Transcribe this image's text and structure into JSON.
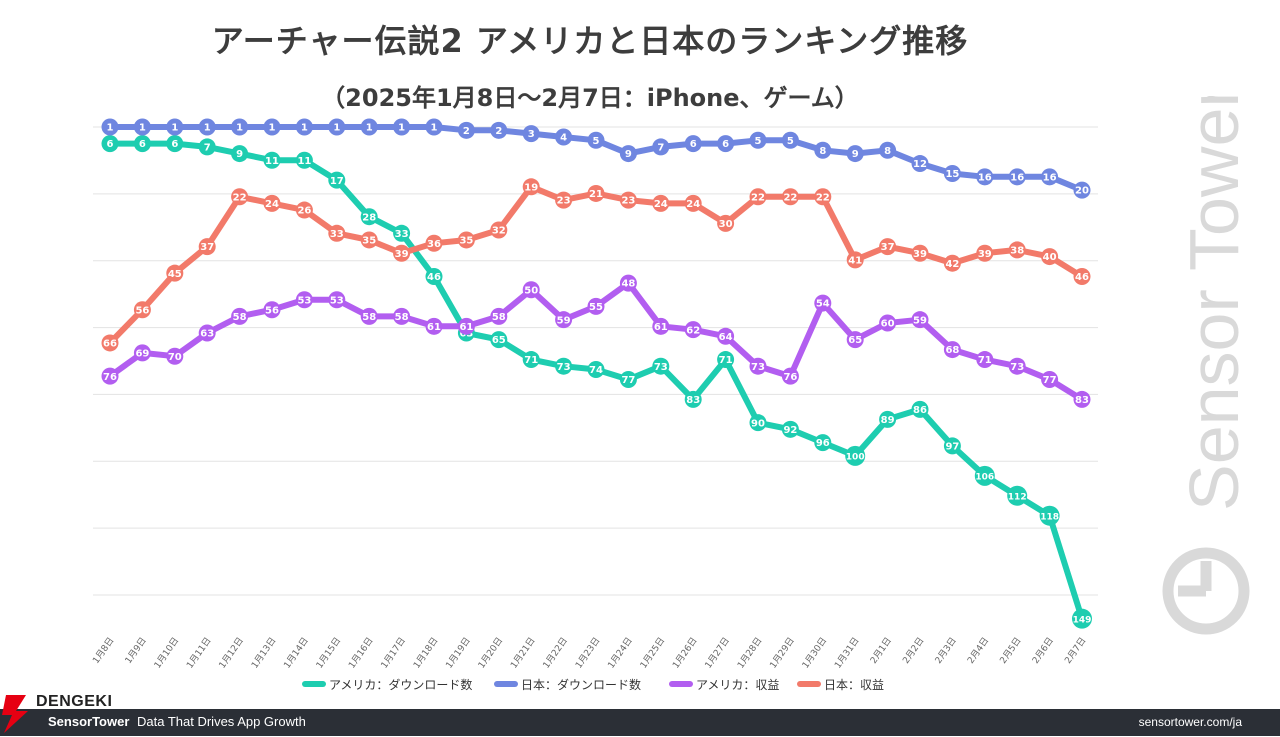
{
  "header": {
    "title": "アーチャー伝説2 アメリカと日本のランキング推移",
    "subtitle": "（2025年1月8日〜2月7日：iPhone、ゲーム）"
  },
  "watermark": {
    "text": "Sensor Tower",
    "icon": "sensor-tower-logo-icon"
  },
  "footer": {
    "brand": "SensorTower",
    "tagline": "Data That Drives App Growth",
    "url": "sensortower.com/ja",
    "background": "#2b2f36"
  },
  "overlay_logo": {
    "text": "DENGEKI",
    "icon": "dengeki-lightning-icon",
    "color": "#e60012"
  },
  "chart_data": {
    "type": "line",
    "title": "アーチャー伝説2 アメリカと日本のランキング推移",
    "subtitle": "（2025年1月8日〜2月7日：iPhone、ゲーム）",
    "y_reversed": true,
    "ylim": [
      1,
      150
    ],
    "grid": true,
    "legend_position": "bottom",
    "categories": [
      "1月8日",
      "1月9日",
      "1月10日",
      "1月11日",
      "1月12日",
      "1月13日",
      "1月14日",
      "1月15日",
      "1月16日",
      "1月17日",
      "1月18日",
      "1月19日",
      "1月20日",
      "1月21日",
      "1月22日",
      "1月23日",
      "1月24日",
      "1月25日",
      "1月26日",
      "1月27日",
      "1月28日",
      "1月29日",
      "1月30日",
      "1月31日",
      "2月1日",
      "2月2日",
      "2月3日",
      "2月4日",
      "2月5日",
      "2月6日",
      "2月7日"
    ],
    "series": [
      {
        "name": "アメリカ：ダウンロード数",
        "color": "#1ecdb0",
        "values": [
          6,
          6,
          6,
          7,
          9,
          11,
          11,
          17,
          28,
          33,
          46,
          63,
          65,
          71,
          73,
          74,
          77,
          73,
          83,
          71,
          90,
          92,
          96,
          100,
          89,
          86,
          97,
          106,
          112,
          118,
          149
        ]
      },
      {
        "name": "日本：ダウンロード数",
        "color": "#6f86e0",
        "values": [
          1,
          1,
          1,
          1,
          1,
          1,
          1,
          1,
          1,
          1,
          1,
          2,
          2,
          3,
          4,
          5,
          9,
          7,
          6,
          6,
          5,
          5,
          8,
          9,
          8,
          12,
          15,
          16,
          16,
          16,
          20
        ]
      },
      {
        "name": "アメリカ：収益",
        "color": "#b25ef0",
        "values": [
          76,
          69,
          70,
          63,
          58,
          56,
          53,
          53,
          58,
          58,
          61,
          61,
          58,
          50,
          59,
          55,
          48,
          61,
          62,
          64,
          73,
          76,
          54,
          65,
          60,
          59,
          68,
          71,
          73,
          77,
          83
        ]
      },
      {
        "name": "日本：収益",
        "color": "#f27a6a",
        "values": [
          66,
          56,
          45,
          37,
          22,
          24,
          26,
          33,
          35,
          39,
          36,
          35,
          32,
          19,
          23,
          21,
          23,
          24,
          24,
          30,
          22,
          22,
          22,
          41,
          37,
          39,
          42,
          39,
          38,
          40,
          46
        ]
      }
    ]
  }
}
